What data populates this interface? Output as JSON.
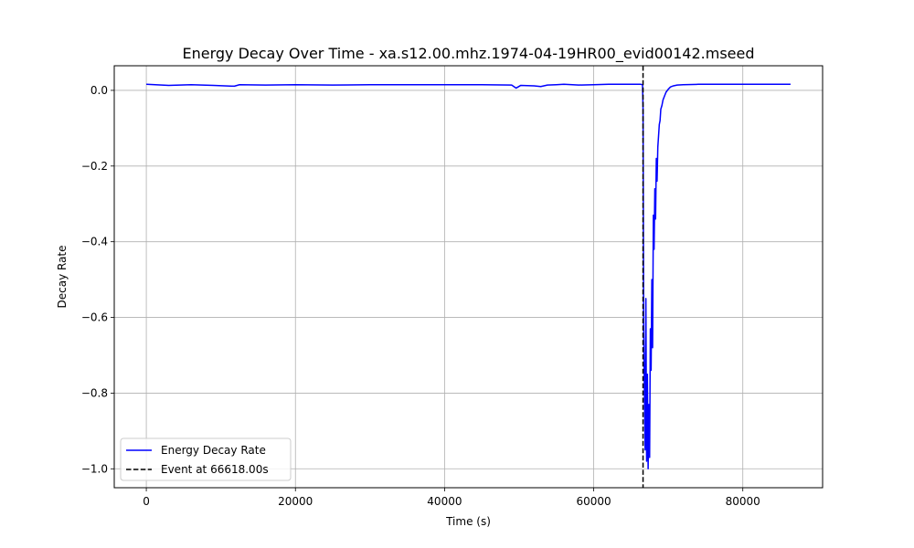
{
  "chart_data": {
    "type": "line",
    "title": "Energy Decay Over Time - xa.s12.00.mhz.1974-04-19HR00_evid00142.mseed",
    "xlabel": "Time (s)",
    "ylabel": "Decay Rate",
    "xlim": [
      -4300,
      90700
    ],
    "ylim": [
      -1.05,
      0.065
    ],
    "x_ticks": [
      0,
      20000,
      40000,
      60000,
      80000
    ],
    "x_tick_labels": [
      "0",
      "20000",
      "40000",
      "60000",
      "80000"
    ],
    "y_ticks": [
      0.0,
      -0.2,
      -0.4,
      -0.6,
      -0.8,
      -1.0
    ],
    "y_tick_labels": [
      "0.0",
      "−0.2",
      "−0.4",
      "−0.6",
      "−0.8",
      "−1.0"
    ],
    "grid": true,
    "legend_position": "lower-left",
    "series": [
      {
        "name": "Energy Decay Rate",
        "color": "#0000ff",
        "style": "solid",
        "x": [
          0,
          3000,
          6000,
          9000,
          11800,
          12500,
          16000,
          20000,
          25000,
          30000,
          35000,
          40000,
          45000,
          49000,
          49600,
          50200,
          52000,
          52900,
          53800,
          55000,
          56000,
          58000,
          60000,
          62000,
          64000,
          66300,
          66550,
          66620,
          66700,
          66800,
          66900,
          67000,
          67100,
          67200,
          67300,
          67400,
          67500,
          67600,
          67700,
          67800,
          67900,
          68000,
          68100,
          68200,
          68300,
          68400,
          68500,
          68600,
          68700,
          68800,
          68900,
          69000,
          69150,
          69300,
          69500,
          69700,
          70000,
          70300,
          70700,
          71200,
          72000,
          74000,
          78000,
          82000,
          86400
        ],
        "y": [
          0.016,
          0.013,
          0.015,
          0.013,
          0.011,
          0.015,
          0.014,
          0.015,
          0.014,
          0.015,
          0.015,
          0.015,
          0.015,
          0.014,
          0.006,
          0.013,
          0.012,
          0.01,
          0.014,
          0.015,
          0.016,
          0.014,
          0.015,
          0.016,
          0.016,
          0.016,
          0.015,
          -0.05,
          -0.62,
          -0.78,
          -0.95,
          -0.55,
          -0.98,
          -0.75,
          -1.0,
          -0.83,
          -0.97,
          -0.63,
          -0.74,
          -0.5,
          -0.68,
          -0.33,
          -0.42,
          -0.26,
          -0.34,
          -0.18,
          -0.24,
          -0.15,
          -0.12,
          -0.09,
          -0.08,
          -0.05,
          -0.04,
          -0.025,
          -0.015,
          -0.005,
          0.003,
          0.009,
          0.012,
          0.014,
          0.015,
          0.016,
          0.016,
          0.016,
          0.016
        ]
      },
      {
        "name": "Event at 66618.00s",
        "color": "#000000",
        "style": "dashed",
        "vline_x": 66618
      }
    ]
  }
}
